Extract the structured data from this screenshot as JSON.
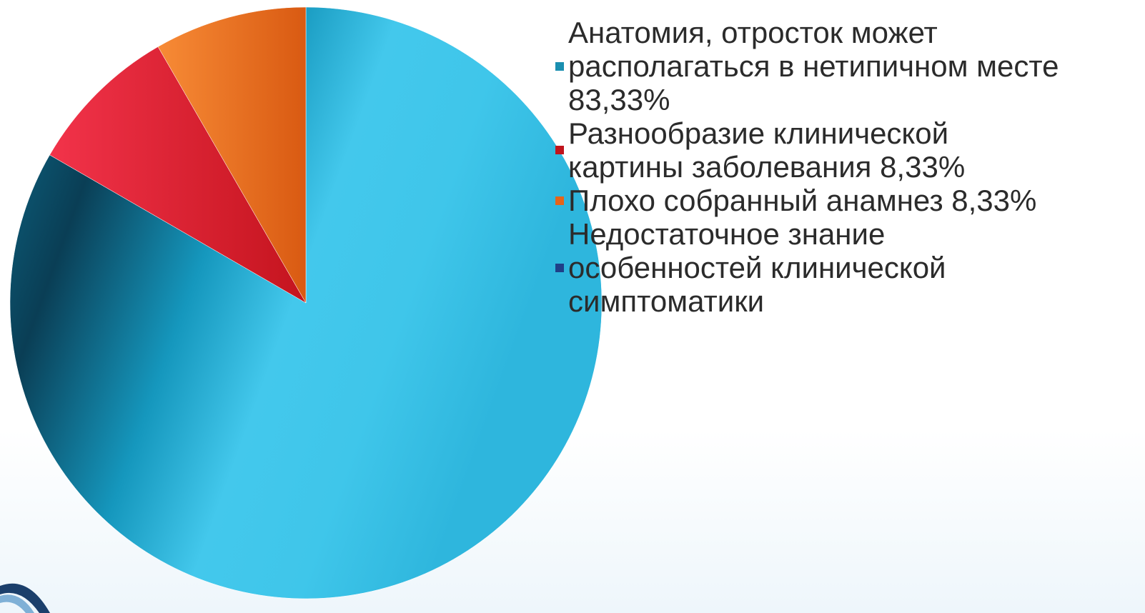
{
  "chart_data": {
    "type": "pie",
    "title": "",
    "start_angle_deg": 0,
    "direction": "clockwise",
    "slices": [
      {
        "label": "Анатомия, отросток может\nрасполагаться в нетипичном месте\n83,33%",
        "value": 83.33,
        "color": "#3cc4ea"
      },
      {
        "label": "Разнообразие клинической\nкартины заболевания 8,33%",
        "value": 8.33,
        "color": "#ee2a34"
      },
      {
        "label": "Плохо собранный анамнез 8,33%",
        "value": 8.33,
        "color": "#f07a22"
      },
      {
        "label": "Недостаточное знание\nособенностей клинической\nсимптоматики",
        "value": 0,
        "color": "#1f4e8c"
      }
    ],
    "legend_position": "right"
  },
  "legend_swatches": {
    "slice0": "#1a8fb0",
    "slice1": "#c0141c",
    "slice2": "#e5641a",
    "slice3": "#1f3f88"
  }
}
